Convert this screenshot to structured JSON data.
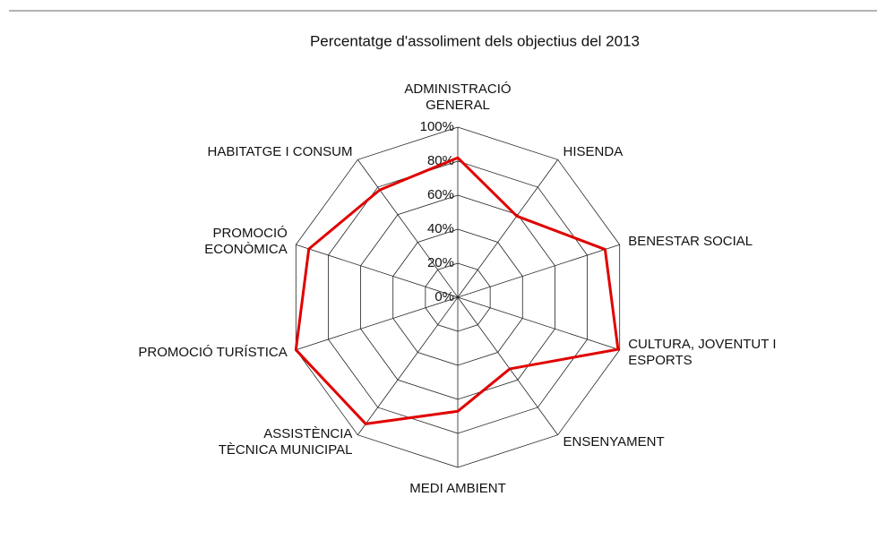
{
  "chart_data": {
    "type": "radar",
    "title": "Percentatge d'assoliment dels objectius del 2013",
    "categories": [
      "ADMINISTRACIÓ\nGENERAL",
      "HISENDA",
      "BENESTAR SOCIAL",
      "CULTURA, JOVENTUT I\nESPORTS",
      "ENSENYAMENT",
      "MEDI AMBIENT",
      "ASSISTÈNCIA\nTÈCNICA MUNICIPAL",
      "PROMOCIÓ TURÍSTICA",
      "PROMOCIÓ\nECONÒMICA",
      "HABITATGE I CONSUM"
    ],
    "series": [
      {
        "name": "2013",
        "color": "#e00000",
        "values": [
          82,
          59,
          91,
          99,
          52,
          67,
          92,
          100,
          92,
          78
        ]
      }
    ],
    "ylim": [
      0,
      100
    ],
    "yticks": [
      {
        "value": 0,
        "label": "0%"
      },
      {
        "value": 20,
        "label": "20%"
      },
      {
        "value": 40,
        "label": "40%"
      },
      {
        "value": 60,
        "label": "60%"
      },
      {
        "value": 80,
        "label": "80%"
      },
      {
        "value": 100,
        "label": "100%"
      }
    ],
    "grid": true
  }
}
